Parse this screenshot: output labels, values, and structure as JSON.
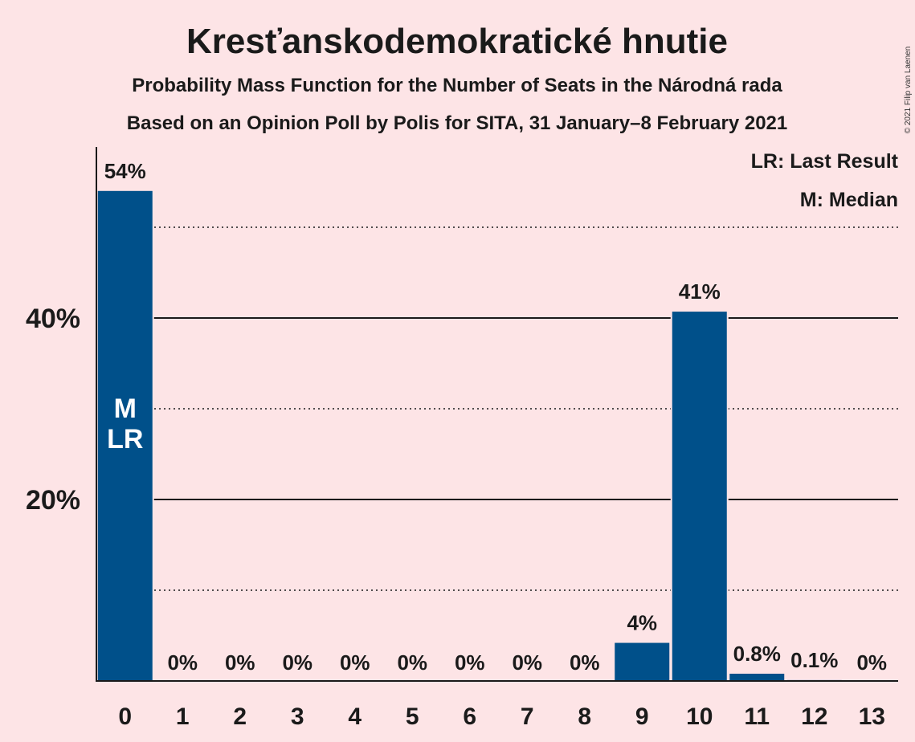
{
  "title": "Kresťanskodemokratické hnutie",
  "subtitle1": "Probability Mass Function for the Number of Seats in the Národná rada",
  "subtitle2": "Based on an Opinion Poll by Polis for SITA, 31 January–8 February 2021",
  "copyright": "© 2021 Filip van Laenen",
  "legend": {
    "last_result": "LR: Last Result",
    "median": "M: Median"
  },
  "colors": {
    "bar": "#00508a",
    "background": "#fde4e6"
  },
  "chart_data": {
    "type": "bar",
    "categories": [
      "0",
      "1",
      "2",
      "3",
      "4",
      "5",
      "6",
      "7",
      "8",
      "9",
      "10",
      "11",
      "12",
      "13"
    ],
    "values": [
      54,
      0,
      0,
      0,
      0,
      0,
      0,
      0,
      0,
      4.2,
      40.7,
      0.8,
      0.1,
      0
    ],
    "data_labels": [
      "54%",
      "0%",
      "0%",
      "0%",
      "0%",
      "0%",
      "0%",
      "0%",
      "0%",
      "4%",
      "41%",
      "0.8%",
      "0.1%",
      "0%"
    ],
    "yticks": [
      20,
      40
    ],
    "ytick_labels": [
      "20%",
      "40%"
    ],
    "minor_gridlines": [
      10,
      30,
      50
    ],
    "ylim": [
      0,
      58
    ],
    "bar_markers": [
      {
        "category": "0",
        "lines": [
          "M",
          "LR"
        ]
      }
    ],
    "grid": true,
    "legend_position": "top-right"
  }
}
